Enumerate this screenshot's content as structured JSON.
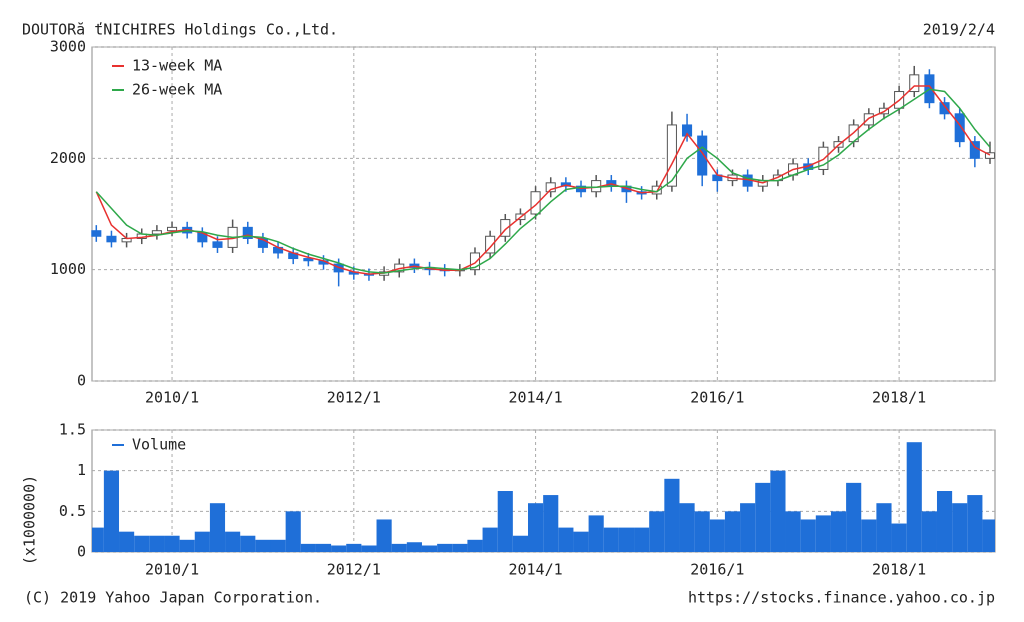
{
  "chart_data": [
    {
      "type": "candlestick",
      "title": "DOUTORă ťNICHIRES Holdings Co.,Ltd.",
      "subtitle": "2019/2/4",
      "categories": [
        "2009/3",
        "2009/5",
        "2009/7",
        "2009/9",
        "2009/11",
        "2010/1",
        "2010/3",
        "2010/5",
        "2010/7",
        "2010/9",
        "2010/11",
        "2011/1",
        "2011/3",
        "2011/5",
        "2011/7",
        "2011/9",
        "2011/11",
        "2012/1",
        "2012/3",
        "2012/5",
        "2012/7",
        "2012/9",
        "2012/11",
        "2013/1",
        "2013/3",
        "2013/5",
        "2013/7",
        "2013/9",
        "2013/11",
        "2014/1",
        "2014/3",
        "2014/5",
        "2014/7",
        "2014/9",
        "2014/11",
        "2015/1",
        "2015/3",
        "2015/5",
        "2015/7",
        "2015/9",
        "2015/11",
        "2016/1",
        "2016/3",
        "2016/5",
        "2016/7",
        "2016/9",
        "2016/11",
        "2017/1",
        "2017/3",
        "2017/5",
        "2017/7",
        "2017/9",
        "2017/11",
        "2018/1",
        "2018/3",
        "2018/5",
        "2018/7",
        "2018/9",
        "2018/11",
        "2019/1"
      ],
      "open": [
        1350,
        1300,
        1250,
        1280,
        1320,
        1350,
        1380,
        1330,
        1250,
        1200,
        1380,
        1280,
        1200,
        1150,
        1100,
        1080,
        1050,
        980,
        960,
        950,
        980,
        1050,
        1020,
        1000,
        990,
        1000,
        1150,
        1300,
        1450,
        1500,
        1700,
        1780,
        1750,
        1700,
        1800,
        1750,
        1700,
        1680,
        1750,
        2300,
        2200,
        1850,
        1800,
        1850,
        1750,
        1800,
        1850,
        1950,
        1900,
        2100,
        2150,
        2300,
        2400,
        2450,
        2600,
        2750,
        2500,
        2400,
        2150,
        2000
      ],
      "high": [
        1400,
        1350,
        1330,
        1370,
        1400,
        1430,
        1430,
        1380,
        1300,
        1450,
        1430,
        1330,
        1250,
        1200,
        1150,
        1130,
        1100,
        1030,
        1010,
        1030,
        1100,
        1100,
        1070,
        1050,
        1050,
        1200,
        1350,
        1500,
        1550,
        1750,
        1830,
        1830,
        1800,
        1850,
        1850,
        1800,
        1750,
        1800,
        2420,
        2400,
        2250,
        1900,
        1900,
        1900,
        1850,
        1900,
        2000,
        2000,
        2150,
        2200,
        2350,
        2450,
        2500,
        2650,
        2830,
        2800,
        2550,
        2450,
        2200,
        2150
      ],
      "low": [
        1250,
        1200,
        1200,
        1230,
        1270,
        1300,
        1280,
        1200,
        1150,
        1150,
        1230,
        1150,
        1100,
        1050,
        1030,
        1000,
        850,
        910,
        900,
        900,
        930,
        970,
        950,
        940,
        940,
        950,
        1100,
        1250,
        1400,
        1450,
        1650,
        1700,
        1650,
        1650,
        1700,
        1600,
        1630,
        1630,
        1700,
        2150,
        1750,
        1700,
        1750,
        1700,
        1700,
        1750,
        1800,
        1850,
        1850,
        2050,
        2100,
        2250,
        2350,
        2400,
        2550,
        2450,
        2350,
        2100,
        1920,
        1950
      ],
      "close": [
        1300,
        1250,
        1280,
        1320,
        1350,
        1380,
        1330,
        1250,
        1200,
        1380,
        1280,
        1200,
        1150,
        1100,
        1080,
        1050,
        980,
        960,
        950,
        980,
        1050,
        1020,
        1000,
        990,
        1000,
        1150,
        1300,
        1450,
        1500,
        1700,
        1780,
        1750,
        1700,
        1800,
        1750,
        1700,
        1680,
        1750,
        2300,
        2200,
        1850,
        1800,
        1850,
        1750,
        1800,
        1850,
        1950,
        1900,
        2100,
        2150,
        2300,
        2400,
        2450,
        2600,
        2750,
        2500,
        2400,
        2150,
        2000,
        2050
      ],
      "rise_color": "#ffffff",
      "fall_color": "#1f6fd8",
      "series": [
        {
          "name": "13-week MA",
          "color": "#e8312f",
          "values": [
            1700,
            1400,
            1280,
            1290,
            1310,
            1340,
            1360,
            1330,
            1270,
            1280,
            1310,
            1270,
            1200,
            1150,
            1110,
            1080,
            1020,
            980,
            960,
            970,
            1010,
            1030,
            1010,
            995,
            995,
            1060,
            1200,
            1360,
            1470,
            1580,
            1720,
            1760,
            1730,
            1740,
            1770,
            1730,
            1690,
            1700,
            1950,
            2220,
            2050,
            1850,
            1820,
            1810,
            1780,
            1830,
            1900,
            1930,
            1990,
            2120,
            2230,
            2360,
            2420,
            2520,
            2650,
            2650,
            2470,
            2300,
            2100,
            2030
          ]
        },
        {
          "name": "26-week MA",
          "color": "#2ea84a",
          "values": [
            1700,
            1550,
            1400,
            1320,
            1310,
            1330,
            1350,
            1340,
            1310,
            1290,
            1300,
            1290,
            1250,
            1190,
            1140,
            1100,
            1060,
            1010,
            980,
            970,
            990,
            1010,
            1020,
            1010,
            1000,
            1020,
            1100,
            1230,
            1370,
            1480,
            1610,
            1720,
            1740,
            1740,
            1750,
            1750,
            1720,
            1700,
            1800,
            2000,
            2100,
            2000,
            1870,
            1820,
            1800,
            1800,
            1850,
            1900,
            1940,
            2030,
            2150,
            2260,
            2360,
            2440,
            2530,
            2620,
            2600,
            2450,
            2260,
            2100
          ]
        }
      ],
      "ylim": [
        0,
        3000
      ],
      "yticks": [
        0,
        1000,
        2000,
        3000
      ],
      "xticks": [
        "2010/1",
        "2012/1",
        "2014/1",
        "2016/1",
        "2018/1"
      ],
      "grid": true
    },
    {
      "type": "bar",
      "ylabel": "(x1000000)",
      "categories": [
        "2009/3",
        "2009/5",
        "2009/7",
        "2009/9",
        "2009/11",
        "2010/1",
        "2010/3",
        "2010/5",
        "2010/7",
        "2010/9",
        "2010/11",
        "2011/1",
        "2011/3",
        "2011/5",
        "2011/7",
        "2011/9",
        "2011/11",
        "2012/1",
        "2012/3",
        "2012/5",
        "2012/7",
        "2012/9",
        "2012/11",
        "2013/1",
        "2013/3",
        "2013/5",
        "2013/7",
        "2013/9",
        "2013/11",
        "2014/1",
        "2014/3",
        "2014/5",
        "2014/7",
        "2014/9",
        "2014/11",
        "2015/1",
        "2015/3",
        "2015/5",
        "2015/7",
        "2015/9",
        "2015/11",
        "2016/1",
        "2016/3",
        "2016/5",
        "2016/7",
        "2016/9",
        "2016/11",
        "2017/1",
        "2017/3",
        "2017/5",
        "2017/7",
        "2017/9",
        "2017/11",
        "2018/1",
        "2018/3",
        "2018/5",
        "2018/7",
        "2018/9",
        "2018/11",
        "2019/1"
      ],
      "series": [
        {
          "name": "Volume",
          "color": "#1f6fd8",
          "values": [
            0.3,
            1.0,
            0.25,
            0.2,
            0.2,
            0.2,
            0.15,
            0.25,
            0.6,
            0.25,
            0.2,
            0.15,
            0.15,
            0.5,
            0.1,
            0.1,
            0.08,
            0.1,
            0.08,
            0.4,
            0.1,
            0.12,
            0.08,
            0.1,
            0.1,
            0.15,
            0.3,
            0.75,
            0.2,
            0.6,
            0.7,
            0.3,
            0.25,
            0.45,
            0.3,
            0.3,
            0.3,
            0.5,
            0.9,
            0.6,
            0.5,
            0.4,
            0.5,
            0.6,
            0.85,
            1.0,
            0.5,
            0.4,
            0.45,
            0.5,
            0.85,
            0.4,
            0.6,
            0.35,
            1.35,
            0.5,
            0.75,
            0.6,
            0.7,
            0.4
          ]
        }
      ],
      "ylim": [
        0,
        1.5
      ],
      "yticks": [
        0,
        0.5,
        1,
        1.5
      ],
      "xticks": [
        "2010/1",
        "2012/1",
        "2014/1",
        "2016/1",
        "2018/1"
      ],
      "grid": true
    }
  ],
  "footer": {
    "copyright": "(C) 2019 Yahoo Japan Corporation.",
    "source": "https://stocks.finance.yahoo.co.jp"
  }
}
